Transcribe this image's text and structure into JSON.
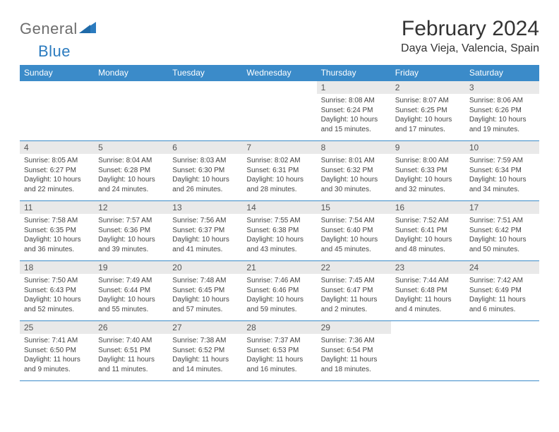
{
  "logo": {
    "word1": "General",
    "word2": "Blue"
  },
  "title": "February 2024",
  "location": "Daya Vieja, Valencia, Spain",
  "headers": [
    "Sunday",
    "Monday",
    "Tuesday",
    "Wednesday",
    "Thursday",
    "Friday",
    "Saturday"
  ],
  "colors": {
    "header_bg": "#3b8bc9",
    "header_text": "#ffffff",
    "daynum_bg": "#e9e9e9",
    "border": "#3b8bc9",
    "logo_gray": "#6d6d6d",
    "logo_blue": "#2b7bbf"
  },
  "weeks": [
    [
      null,
      null,
      null,
      null,
      {
        "n": "1",
        "sr": "8:08 AM",
        "ss": "6:24 PM",
        "dl": "10 hours and 15 minutes."
      },
      {
        "n": "2",
        "sr": "8:07 AM",
        "ss": "6:25 PM",
        "dl": "10 hours and 17 minutes."
      },
      {
        "n": "3",
        "sr": "8:06 AM",
        "ss": "6:26 PM",
        "dl": "10 hours and 19 minutes."
      }
    ],
    [
      {
        "n": "4",
        "sr": "8:05 AM",
        "ss": "6:27 PM",
        "dl": "10 hours and 22 minutes."
      },
      {
        "n": "5",
        "sr": "8:04 AM",
        "ss": "6:28 PM",
        "dl": "10 hours and 24 minutes."
      },
      {
        "n": "6",
        "sr": "8:03 AM",
        "ss": "6:30 PM",
        "dl": "10 hours and 26 minutes."
      },
      {
        "n": "7",
        "sr": "8:02 AM",
        "ss": "6:31 PM",
        "dl": "10 hours and 28 minutes."
      },
      {
        "n": "8",
        "sr": "8:01 AM",
        "ss": "6:32 PM",
        "dl": "10 hours and 30 minutes."
      },
      {
        "n": "9",
        "sr": "8:00 AM",
        "ss": "6:33 PM",
        "dl": "10 hours and 32 minutes."
      },
      {
        "n": "10",
        "sr": "7:59 AM",
        "ss": "6:34 PM",
        "dl": "10 hours and 34 minutes."
      }
    ],
    [
      {
        "n": "11",
        "sr": "7:58 AM",
        "ss": "6:35 PM",
        "dl": "10 hours and 36 minutes."
      },
      {
        "n": "12",
        "sr": "7:57 AM",
        "ss": "6:36 PM",
        "dl": "10 hours and 39 minutes."
      },
      {
        "n": "13",
        "sr": "7:56 AM",
        "ss": "6:37 PM",
        "dl": "10 hours and 41 minutes."
      },
      {
        "n": "14",
        "sr": "7:55 AM",
        "ss": "6:38 PM",
        "dl": "10 hours and 43 minutes."
      },
      {
        "n": "15",
        "sr": "7:54 AM",
        "ss": "6:40 PM",
        "dl": "10 hours and 45 minutes."
      },
      {
        "n": "16",
        "sr": "7:52 AM",
        "ss": "6:41 PM",
        "dl": "10 hours and 48 minutes."
      },
      {
        "n": "17",
        "sr": "7:51 AM",
        "ss": "6:42 PM",
        "dl": "10 hours and 50 minutes."
      }
    ],
    [
      {
        "n": "18",
        "sr": "7:50 AM",
        "ss": "6:43 PM",
        "dl": "10 hours and 52 minutes."
      },
      {
        "n": "19",
        "sr": "7:49 AM",
        "ss": "6:44 PM",
        "dl": "10 hours and 55 minutes."
      },
      {
        "n": "20",
        "sr": "7:48 AM",
        "ss": "6:45 PM",
        "dl": "10 hours and 57 minutes."
      },
      {
        "n": "21",
        "sr": "7:46 AM",
        "ss": "6:46 PM",
        "dl": "10 hours and 59 minutes."
      },
      {
        "n": "22",
        "sr": "7:45 AM",
        "ss": "6:47 PM",
        "dl": "11 hours and 2 minutes."
      },
      {
        "n": "23",
        "sr": "7:44 AM",
        "ss": "6:48 PM",
        "dl": "11 hours and 4 minutes."
      },
      {
        "n": "24",
        "sr": "7:42 AM",
        "ss": "6:49 PM",
        "dl": "11 hours and 6 minutes."
      }
    ],
    [
      {
        "n": "25",
        "sr": "7:41 AM",
        "ss": "6:50 PM",
        "dl": "11 hours and 9 minutes."
      },
      {
        "n": "26",
        "sr": "7:40 AM",
        "ss": "6:51 PM",
        "dl": "11 hours and 11 minutes."
      },
      {
        "n": "27",
        "sr": "7:38 AM",
        "ss": "6:52 PM",
        "dl": "11 hours and 14 minutes."
      },
      {
        "n": "28",
        "sr": "7:37 AM",
        "ss": "6:53 PM",
        "dl": "11 hours and 16 minutes."
      },
      {
        "n": "29",
        "sr": "7:36 AM",
        "ss": "6:54 PM",
        "dl": "11 hours and 18 minutes."
      },
      null,
      null
    ]
  ],
  "labels": {
    "sunrise": "Sunrise:",
    "sunset": "Sunset:",
    "daylight": "Daylight:"
  }
}
